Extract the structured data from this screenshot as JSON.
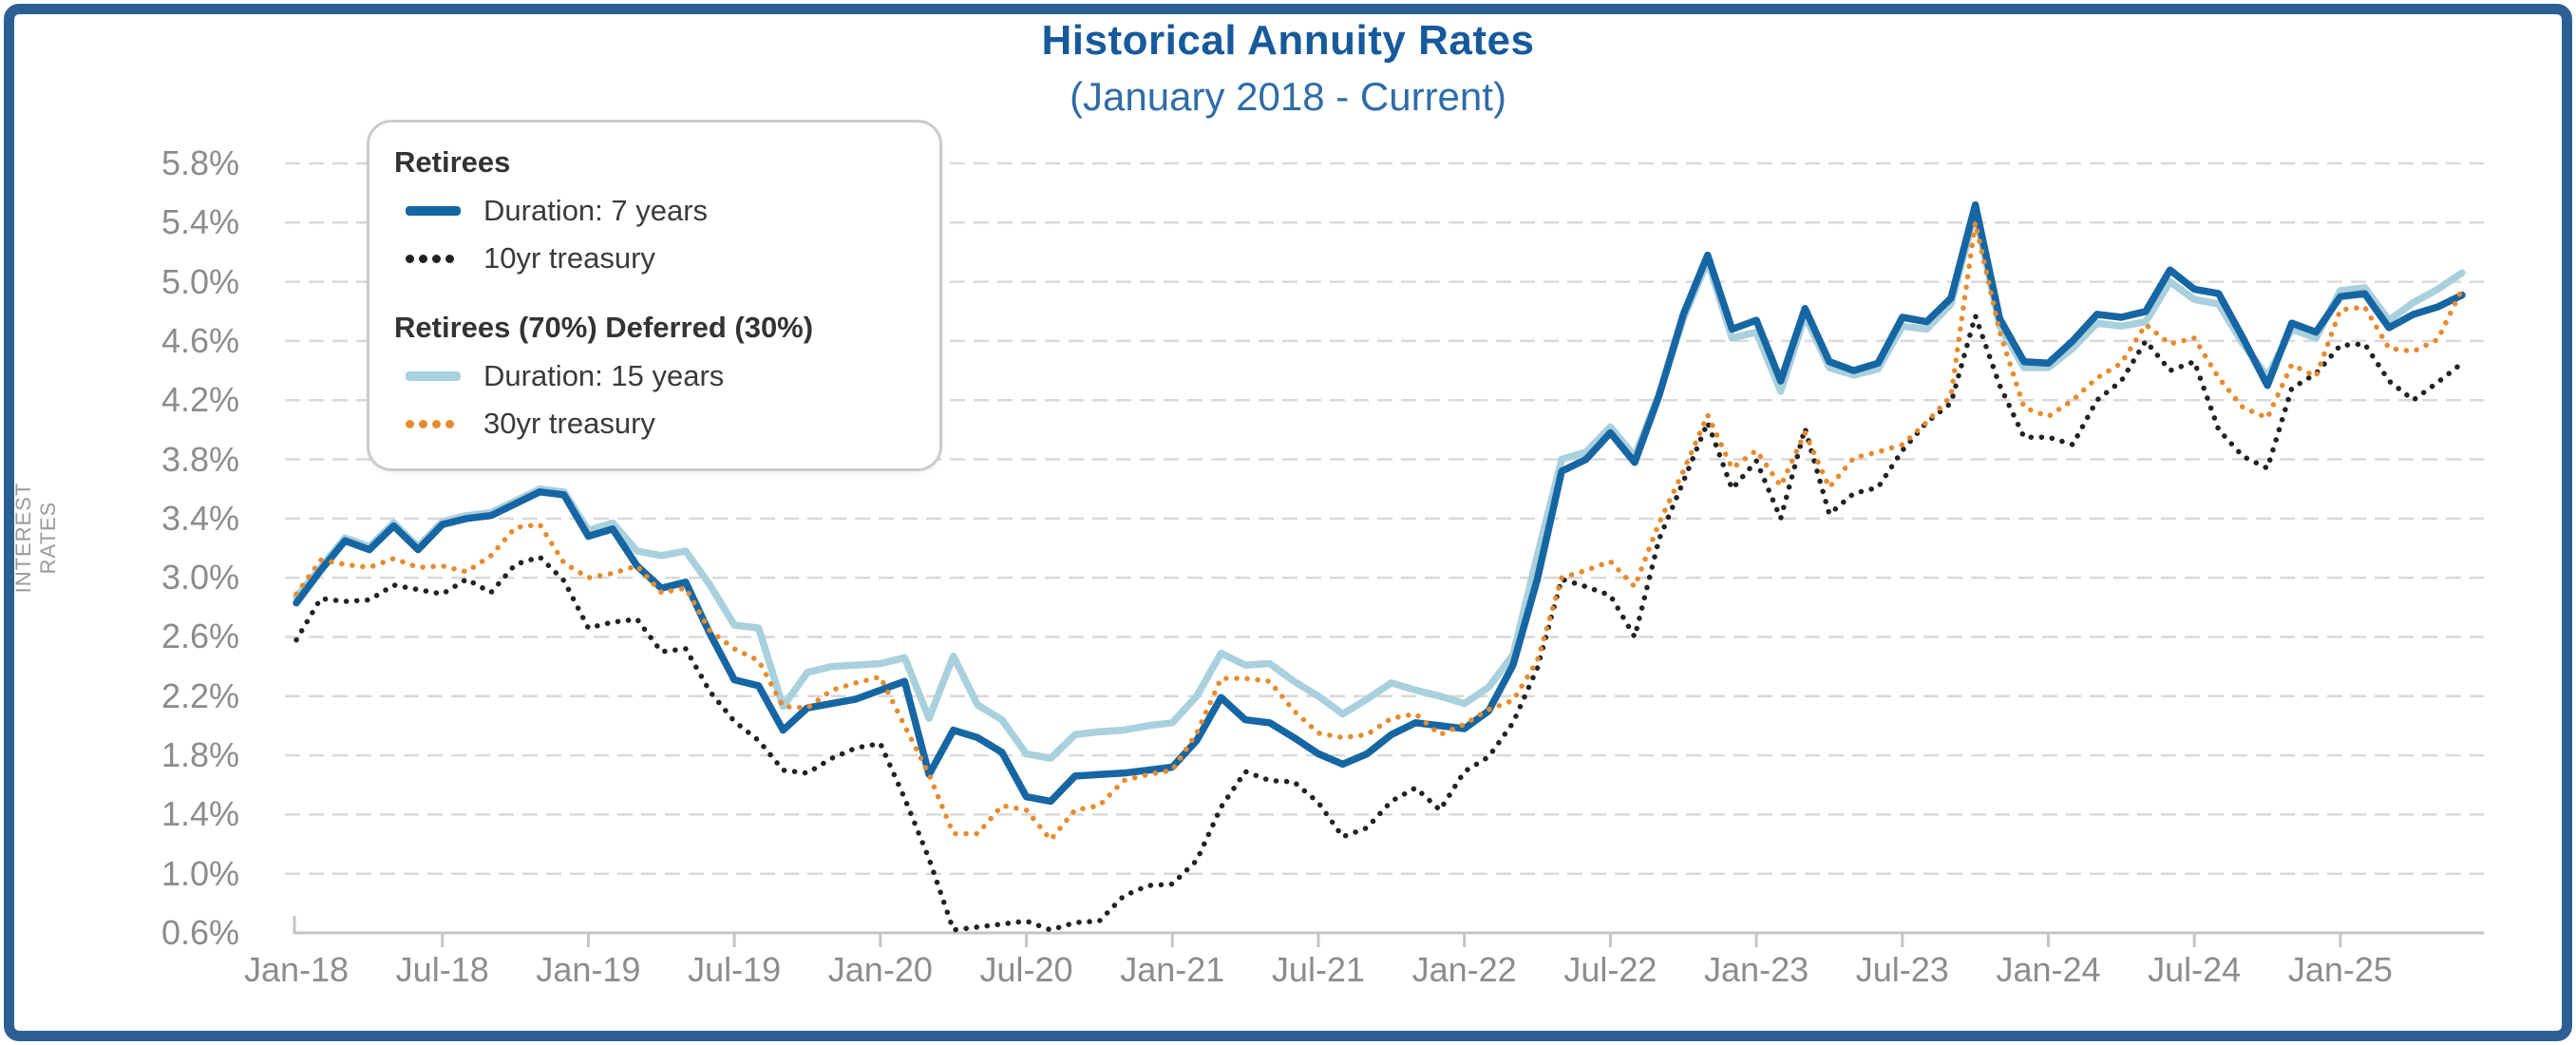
{
  "header": {
    "title": "Historical Annuity Rates",
    "subtitle": "(January 2018 - Current)"
  },
  "colors": {
    "frame_border": "#2e5f94",
    "title_text": "#175a9c",
    "subtitle_text": "#2f6ca8",
    "grid_line": "#d9d9d9",
    "axis_line": "#c4c4c4",
    "tick_text": "#8c8c8c",
    "axis_title_text": "#9a9a9a",
    "legend_border": "#cbcbcb",
    "legend_text": "#3a3a3a"
  },
  "legend": {
    "groups": [
      {
        "title": "Retirees",
        "items": [
          {
            "label": "Duration: 7 years",
            "series": 0,
            "swatch": "solid"
          },
          {
            "label": "10yr treasury",
            "series": 1,
            "swatch": "dotted"
          }
        ]
      },
      {
        "title": "Retirees (70%) Deferred (30%)",
        "items": [
          {
            "label": "Duration: 15 years",
            "series": 2,
            "swatch": "solid"
          },
          {
            "label": "30yr treasury",
            "series": 3,
            "swatch": "dotted"
          }
        ]
      }
    ]
  },
  "chart_data": {
    "type": "line",
    "title": "Historical Annuity Rates",
    "subtitle": "(January 2018 - Current)",
    "ylabel": "INTEREST RATES",
    "xlabel": "",
    "ylim": [
      0.6,
      5.8
    ],
    "y_tick_step": 0.4,
    "grid": "horizontal-dashed",
    "legend_position": "upper-left-overlay",
    "x_tick_every": 6,
    "months": [
      "Jan-18",
      "Feb-18",
      "Mar-18",
      "Apr-18",
      "May-18",
      "Jun-18",
      "Jul-18",
      "Aug-18",
      "Sep-18",
      "Oct-18",
      "Nov-18",
      "Dec-18",
      "Jan-19",
      "Feb-19",
      "Mar-19",
      "Apr-19",
      "May-19",
      "Jun-19",
      "Jul-19",
      "Aug-19",
      "Sep-19",
      "Oct-19",
      "Nov-19",
      "Dec-19",
      "Jan-20",
      "Feb-20",
      "Mar-20",
      "Apr-20",
      "May-20",
      "Jun-20",
      "Jul-20",
      "Aug-20",
      "Sep-20",
      "Oct-20",
      "Nov-20",
      "Dec-20",
      "Jan-21",
      "Feb-21",
      "Mar-21",
      "Apr-21",
      "May-21",
      "Jun-21",
      "Jul-21",
      "Aug-21",
      "Sep-21",
      "Oct-21",
      "Nov-21",
      "Dec-21",
      "Jan-22",
      "Feb-22",
      "Mar-22",
      "Apr-22",
      "May-22",
      "Jun-22",
      "Jul-22",
      "Aug-22",
      "Sep-22",
      "Oct-22",
      "Nov-22",
      "Dec-22",
      "Jan-23",
      "Feb-23",
      "Mar-23",
      "Apr-23",
      "May-23",
      "Jun-23",
      "Jul-23",
      "Aug-23",
      "Sep-23",
      "Oct-23",
      "Nov-23",
      "Dec-23",
      "Jan-24",
      "Feb-24",
      "Mar-24",
      "Apr-24",
      "May-24",
      "Jun-24",
      "Jul-24",
      "Aug-24",
      "Sep-24",
      "Oct-24",
      "Nov-24",
      "Dec-24",
      "Jan-25",
      "Feb-25",
      "Mar-25",
      "Apr-25",
      "May-25",
      "Jun-25"
    ],
    "series": [
      {
        "name": "Duration: 7 years",
        "group": "Retirees",
        "color": "#1666a3",
        "style": "solid",
        "values": [
          2.83,
          3.05,
          3.25,
          3.19,
          3.35,
          3.19,
          3.36,
          3.4,
          3.42,
          3.5,
          3.58,
          3.56,
          3.28,
          3.33,
          3.08,
          2.93,
          2.97,
          2.62,
          2.31,
          2.27,
          1.97,
          2.12,
          2.15,
          2.18,
          2.24,
          2.3,
          1.67,
          1.97,
          1.92,
          1.82,
          1.52,
          1.49,
          1.66,
          1.67,
          1.68,
          1.7,
          1.72,
          1.9,
          2.19,
          2.04,
          2.02,
          1.92,
          1.81,
          1.74,
          1.81,
          1.94,
          2.02,
          2.0,
          1.98,
          2.1,
          2.41,
          2.99,
          3.72,
          3.8,
          3.98,
          3.78,
          4.23,
          4.78,
          5.18,
          4.68,
          4.74,
          4.33,
          4.82,
          4.46,
          4.4,
          4.45,
          4.76,
          4.73,
          4.89,
          5.52,
          4.75,
          4.46,
          4.45,
          4.6,
          4.78,
          4.76,
          4.8,
          5.08,
          4.95,
          4.92,
          4.62,
          4.3,
          4.72,
          4.66,
          4.9,
          4.92,
          4.69,
          4.78,
          4.83,
          4.91
        ]
      },
      {
        "name": "10yr treasury",
        "group": "Retirees",
        "color": "#222222",
        "style": "dotted",
        "values": [
          2.58,
          2.86,
          2.84,
          2.85,
          2.95,
          2.92,
          2.89,
          2.99,
          2.9,
          3.09,
          3.14,
          2.98,
          2.66,
          2.7,
          2.72,
          2.5,
          2.52,
          2.23,
          2.03,
          1.9,
          1.7,
          1.68,
          1.78,
          1.85,
          1.88,
          1.51,
          1.1,
          0.62,
          0.64,
          0.66,
          0.68,
          0.62,
          0.67,
          0.68,
          0.85,
          0.92,
          0.93,
          1.09,
          1.45,
          1.69,
          1.63,
          1.62,
          1.48,
          1.25,
          1.31,
          1.49,
          1.58,
          1.43,
          1.69,
          1.79,
          2.02,
          2.39,
          2.99,
          2.94,
          2.88,
          2.6,
          3.26,
          3.65,
          4.05,
          3.6,
          3.79,
          3.4,
          4.01,
          3.43,
          3.57,
          3.61,
          3.86,
          4.05,
          4.18,
          4.77,
          4.3,
          3.95,
          3.95,
          3.9,
          4.2,
          4.33,
          4.6,
          4.4,
          4.46,
          4.0,
          3.82,
          3.74,
          4.28,
          4.38,
          4.57,
          4.58,
          4.33,
          4.2,
          4.32,
          4.45
        ]
      },
      {
        "name": "Duration: 15 years",
        "group": "Retirees (70%) Deferred (30%)",
        "color": "#a9d0dd",
        "style": "solid",
        "values": [
          2.87,
          3.07,
          3.27,
          3.21,
          3.37,
          3.21,
          3.38,
          3.42,
          3.44,
          3.52,
          3.6,
          3.58,
          3.32,
          3.37,
          3.18,
          3.15,
          3.18,
          2.95,
          2.68,
          2.66,
          2.13,
          2.36,
          2.4,
          2.41,
          2.42,
          2.46,
          2.05,
          2.47,
          2.14,
          2.04,
          1.81,
          1.78,
          1.94,
          1.96,
          1.97,
          2.0,
          2.02,
          2.2,
          2.49,
          2.41,
          2.42,
          2.3,
          2.2,
          2.08,
          2.18,
          2.29,
          2.24,
          2.2,
          2.15,
          2.26,
          2.48,
          3.15,
          3.8,
          3.85,
          4.02,
          3.82,
          4.24,
          4.75,
          5.14,
          4.62,
          4.66,
          4.26,
          4.77,
          4.42,
          4.37,
          4.41,
          4.7,
          4.68,
          4.85,
          5.47,
          4.7,
          4.42,
          4.42,
          4.55,
          4.72,
          4.7,
          4.73,
          5.0,
          4.88,
          4.85,
          4.58,
          4.36,
          4.68,
          4.62,
          4.94,
          4.96,
          4.74,
          4.86,
          4.95,
          5.06
        ]
      },
      {
        "name": "30yr treasury",
        "group": "Retirees (70%) Deferred (30%)",
        "color": "#e78b2d",
        "style": "dotted",
        "values": [
          2.89,
          3.12,
          3.09,
          3.07,
          3.13,
          3.07,
          3.08,
          3.04,
          3.15,
          3.34,
          3.36,
          3.1,
          3.0,
          3.03,
          3.08,
          2.9,
          2.93,
          2.64,
          2.52,
          2.44,
          2.13,
          2.12,
          2.24,
          2.29,
          2.33,
          2.0,
          1.67,
          1.27,
          1.27,
          1.46,
          1.43,
          1.23,
          1.43,
          1.46,
          1.63,
          1.67,
          1.7,
          1.95,
          2.32,
          2.32,
          2.3,
          2.1,
          1.95,
          1.92,
          1.94,
          2.05,
          2.08,
          1.94,
          2.01,
          2.11,
          2.17,
          2.44,
          3.0,
          3.05,
          3.11,
          2.94,
          3.37,
          3.72,
          4.1,
          3.74,
          3.86,
          3.62,
          3.98,
          3.61,
          3.81,
          3.85,
          3.9,
          4.05,
          4.23,
          5.4,
          4.66,
          4.15,
          4.09,
          4.2,
          4.35,
          4.45,
          4.71,
          4.58,
          4.62,
          4.35,
          4.15,
          4.08,
          4.44,
          4.36,
          4.81,
          4.83,
          4.55,
          4.53,
          4.61,
          4.95
        ]
      }
    ]
  }
}
